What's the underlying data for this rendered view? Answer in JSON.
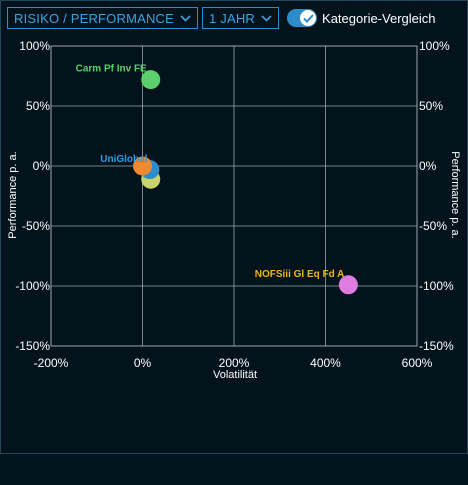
{
  "toolbar": {
    "view_select": "RISIKO / PERFORMANCE",
    "period_select": "1 JAHR",
    "toggle_label": "Kategorie-Vergleich",
    "toggle_on": true
  },
  "colors": {
    "accent": "#2e8cc9",
    "grid": "#9aa8ad",
    "background": "#02131c"
  },
  "chart_data": {
    "type": "scatter",
    "xlabel": "Volatilität",
    "ylabel": "Performance p. a.",
    "xlim": [
      -200,
      600
    ],
    "ylim": [
      -150,
      100
    ],
    "x_ticks": [
      "-200%",
      "0%",
      "200%",
      "400%",
      "600%"
    ],
    "x_tick_values": [
      -200,
      0,
      200,
      400,
      600
    ],
    "y_ticks": [
      "100%",
      "50%",
      "0%",
      "-50%",
      "-100%",
      "-150%"
    ],
    "y_tick_values": [
      100,
      50,
      0,
      -50,
      -100,
      -150
    ],
    "grid": true,
    "points": [
      {
        "label": "Carm Pf Inv FE",
        "x": 18,
        "y": 72,
        "color": "#5bcf6c",
        "label_color": "#5bcf6c"
      },
      {
        "label": "",
        "x": 18,
        "y": -11,
        "color": "#c9d36a",
        "label_color": ""
      },
      {
        "label": "",
        "x": 16,
        "y": -3,
        "color": "#2e8cc9",
        "label_color": ""
      },
      {
        "label": "UniGlobal",
        "x": 0,
        "y": 0,
        "color": "#ee8a34",
        "label_color": "#2e9be0"
      },
      {
        "label": "NOFSiii Gl Eq Fd A",
        "x": 450,
        "y": -99,
        "color": "#e07be0",
        "label_color": "#f0b323"
      }
    ]
  }
}
